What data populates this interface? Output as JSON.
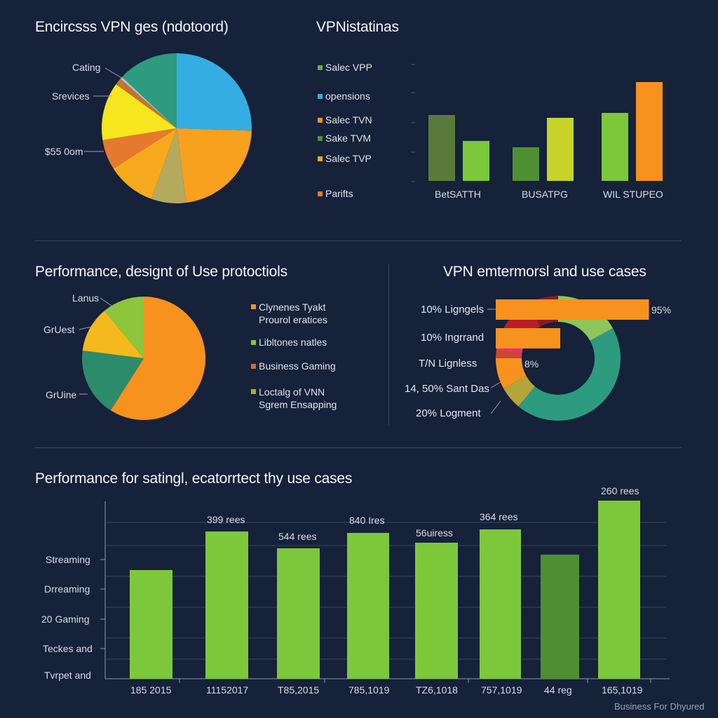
{
  "colors": {
    "background": "#16213a",
    "green": "#7cc83a",
    "dark_green": "#4e8f34",
    "olive": "#5a7a3a",
    "lime": "#c8d32a",
    "orange": "#f7921e",
    "yellow": "#f5e61e",
    "blue": "#35ade2",
    "teal": "#2c9b80",
    "khaki": "#b4aa5e",
    "dark_orange": "#e57a2e"
  },
  "footer": {
    "brand": "Business For Dhyured"
  },
  "chart_data": [
    {
      "id": "pie1",
      "type": "pie",
      "title": "Encircsss VPN ges (ndotoord)",
      "labels": [
        "Cating",
        "Srevices",
        "$55 0om"
      ],
      "slices": [
        {
          "value": 25.5,
          "color": "#35ade2"
        },
        {
          "value": 22.5,
          "color": "#f7a11e"
        },
        {
          "value": 7.5,
          "color": "#b4aa5e"
        },
        {
          "value": 10.5,
          "color": "#f7a91e"
        },
        {
          "value": 6.5,
          "color": "#e57a2e"
        },
        {
          "value": 12.5,
          "color": "#f5e61e"
        },
        {
          "value": 1.5,
          "color": "#c8722a"
        },
        {
          "value": 0.5,
          "color": "#a4c8d8"
        },
        {
          "value": 13,
          "color": "#2c9b80"
        }
      ]
    },
    {
      "id": "bar1",
      "type": "bar",
      "title": "VPNistatinas",
      "legend": [
        {
          "label": "Salec VPP",
          "color": "#5fb04a"
        },
        {
          "label": "opensions",
          "color": "#35ade2"
        },
        {
          "label": "Salec TVN",
          "color": "#f7921e"
        },
        {
          "label": "Sake TVM",
          "color": "#4e8f34"
        },
        {
          "label": "Salec TVP",
          "color": "#f5a91e"
        },
        {
          "label": "Parifts",
          "color": "#e57a2e"
        }
      ],
      "categories": [
        "BetSATTH",
        "BUSATPG",
        "WIL STUPEO"
      ],
      "bars": [
        {
          "category": 0,
          "value": 94,
          "color": "#5a7a3a"
        },
        {
          "category": 0,
          "value": 57,
          "color": "#7cc83a"
        },
        {
          "category": 1,
          "value": 48,
          "color": "#4e8f34"
        },
        {
          "category": 1,
          "value": 90,
          "color": "#c8d32a"
        },
        {
          "category": 2,
          "value": 97,
          "color": "#7cc83a"
        },
        {
          "category": 2,
          "value": 141,
          "color": "#f7921e"
        }
      ],
      "ylim": [
        0,
        160
      ]
    },
    {
      "id": "pie2",
      "type": "pie",
      "title": "Performance, designt of Use protoctiols",
      "labels": [
        "Lanus",
        "GrUest",
        "GrUine"
      ],
      "slices": [
        {
          "value": 59,
          "color": "#f7921e"
        },
        {
          "value": 18,
          "color": "#2c8b6a"
        },
        {
          "value": 12,
          "color": "#f5b91e"
        },
        {
          "value": 11,
          "color": "#8cc63a"
        }
      ],
      "legend": [
        {
          "lines": [
            "Clynenes Tyakt",
            "Prourol eratices"
          ],
          "color": "#f7921e"
        },
        {
          "lines": [
            "Libltones natles"
          ],
          "color": "#7cc83a"
        },
        {
          "lines": [
            "Business Gaming"
          ],
          "color": "#e5622e"
        },
        {
          "lines": [
            "Loctalg of VNN",
            "Sgrem Ensapping"
          ],
          "color": "#a8b02a"
        }
      ]
    },
    {
      "id": "donut",
      "type": "pie",
      "title": "VPN emtermorsl and use cases",
      "labels": [
        "10% Ligngels",
        "10% Ingrrand",
        "T/N Lignless",
        "14, 50% Sant Das",
        "20% Logment"
      ],
      "slices": [
        {
          "value": 17,
          "color": "#8cc65a"
        },
        {
          "value": 44,
          "color": "#2c9b80"
        },
        {
          "value": 6,
          "color": "#b4a53a"
        },
        {
          "value": 8,
          "color": "#f7921e"
        },
        {
          "value": 2,
          "color": "#c84a2a"
        },
        {
          "value": 6,
          "color": "#e8307a"
        },
        {
          "value": 9,
          "color": "#b81e2a"
        },
        {
          "value": 8,
          "color": "#8a1a2a"
        }
      ],
      "bars": [
        {
          "value": 95,
          "label": "95%",
          "color": "#f7921e"
        },
        {
          "value": 40,
          "color": "#f7921e"
        }
      ],
      "inner_label": "8%"
    },
    {
      "id": "bar2",
      "type": "bar",
      "title": "Performance for satingl, ecatorrtect thy use cases",
      "ytick_labels": [
        "Streaming",
        "Drreaming",
        "20 Gaming",
        "Teckes and",
        "Tvrpet and"
      ],
      "categories": [
        "185 2015",
        "11152017",
        "T85,2015",
        "785,1019",
        "TZ6,1018",
        "757,1019",
        "44 reg",
        "165,1019"
      ],
      "values": [
        155,
        210,
        186,
        208,
        194,
        213,
        177,
        254
      ],
      "data_labels": [
        "",
        "399 rees",
        "544 rees",
        "840 Ires",
        "56uiress",
        "364 rees",
        "",
        "260 rees"
      ],
      "bar_colors": [
        "#7cc83a",
        "#7cc83a",
        "#7cc83a",
        "#7cc83a",
        "#7cc83a",
        "#7cc83a",
        "#4e8f34",
        "#7cc83a"
      ],
      "ylim": [
        0,
        270
      ]
    }
  ]
}
